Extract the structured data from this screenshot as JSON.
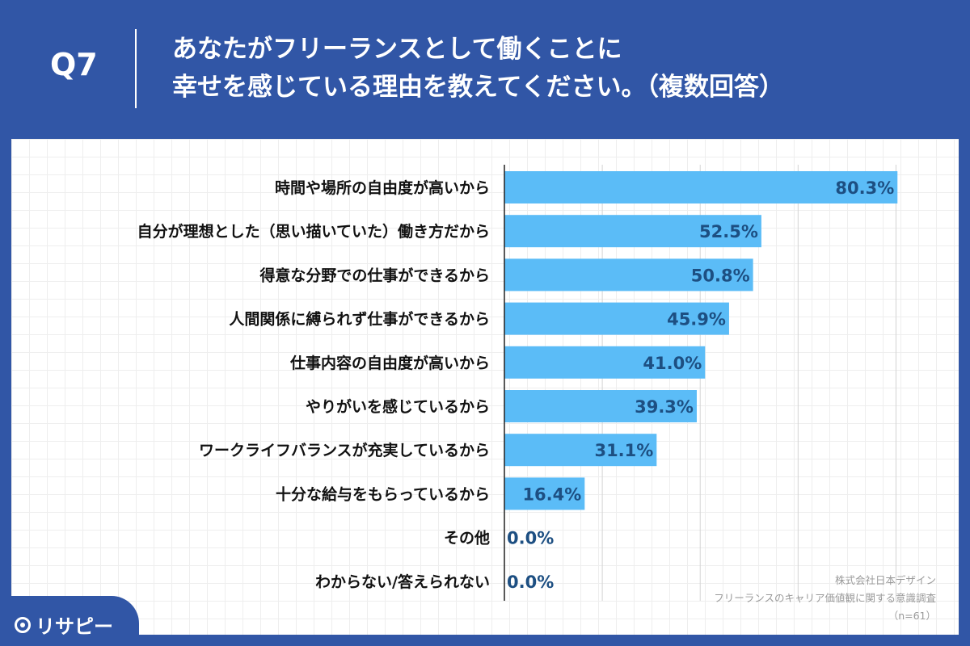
{
  "header": {
    "question_no": "Q7",
    "title_line1": "あなたがフリーランスとして働くことに",
    "title_line2": "幸せを感じている理由を教えてください。（複数回答）"
  },
  "source": {
    "company": "株式会社日本デザイン",
    "survey": "フリーランスのキャリア価値観に関する意識調査",
    "sample": "（n=61）"
  },
  "logo": {
    "text": "リサピー"
  },
  "colors": {
    "bar": "#5bbcf7",
    "header_bg": "#3156a6",
    "value_text": "#1d4f82"
  },
  "chart_data": {
    "type": "bar",
    "orientation": "horizontal",
    "categories": [
      "時間や場所の自由度が高いから",
      "自分が理想とした（思い描いていた）働き方だから",
      "得意な分野での仕事ができるから",
      "人間関係に縛られず仕事ができるから",
      "仕事内容の自由度が高いから",
      "やりがいを感じているから",
      "ワークライフバランスが充実しているから",
      "十分な給与をもらっているから",
      "その他",
      "わからない/答えられない"
    ],
    "values": [
      80.3,
      52.5,
      50.8,
      45.9,
      41.0,
      39.3,
      31.1,
      16.4,
      0.0,
      0.0
    ],
    "value_labels": [
      "80.3%",
      "52.5%",
      "50.8%",
      "45.9%",
      "41.0%",
      "39.3%",
      "31.1%",
      "16.4%",
      "0.0%",
      "0.0%"
    ],
    "xlim": [
      0,
      90
    ],
    "grid": true
  }
}
